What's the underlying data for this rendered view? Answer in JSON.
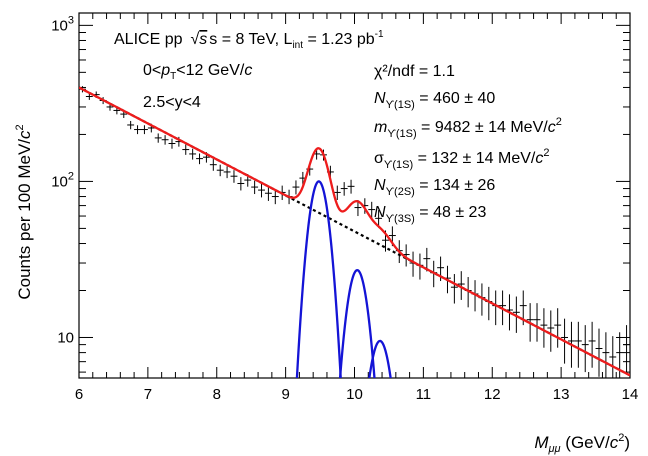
{
  "chart_data": {
    "type": "scatter",
    "xlabel": {
      "main": "M",
      "sub": "μμ",
      "unit_pre": " (GeV/",
      "unit_c": "c",
      "unit_sup": "2",
      "unit_post": ")"
    },
    "ylabel": {
      "pre": "Counts per 100 MeV/",
      "c": "c",
      "sup": "2"
    },
    "x_ticks": [
      "6",
      "7",
      "8",
      "9",
      "10",
      "11",
      "12",
      "13",
      "14"
    ],
    "y_ticks": [
      {
        "base": "10",
        "sup": ""
      },
      {
        "base": "10",
        "sup": "2"
      },
      {
        "base": "10",
        "sup": "3"
      }
    ],
    "xlim": [
      6,
      14
    ],
    "ylim": [
      5.5,
      1200
    ],
    "log_y": true,
    "grid": false,
    "annotations": {
      "experiment": "ALICE pp",
      "energy": "s = 8 TeV, L",
      "lumi_sub": "int",
      "lumi_val": " = 1.23 pb",
      "lumi_sup": "-1",
      "pt_pre": "0<",
      "pt_p": "p",
      "pt_sub": "T",
      "pt_mid": "<12 GeV/",
      "pt_c": "c",
      "rapidity": "2.5<y<4",
      "chi2": "χ²/ndf = 1.1",
      "n1s_sub": "ϒ(1S)",
      "n1s_val": " = 460 ± 40",
      "m1s_sub": "ϒ(1S)",
      "m1s_val": " = 9482 ± 14 MeV/",
      "s1s_sub": "ϒ(1S)",
      "s1s_val": " = 132 ± 14 MeV/",
      "n2s_sub": "ϒ(2S)",
      "n2s_val": " = 134 ± 26",
      "n3s_sub": "ϒ(3S)",
      "n3s_val": " = 48 ± 23"
    },
    "series": [
      {
        "kind": "data",
        "x": [
          6.05,
          6.15,
          6.25,
          6.35,
          6.45,
          6.55,
          6.65,
          6.75,
          6.85,
          6.95,
          7.05,
          7.15,
          7.25,
          7.35,
          7.45,
          7.55,
          7.65,
          7.75,
          7.85,
          7.95,
          8.05,
          8.15,
          8.25,
          8.35,
          8.45,
          8.55,
          8.65,
          8.75,
          8.85,
          8.95,
          9.05,
          9.15,
          9.25,
          9.35,
          9.45,
          9.55,
          9.65,
          9.75,
          9.85,
          9.95,
          10.05,
          10.15,
          10.25,
          10.35,
          10.45,
          10.55,
          10.65,
          10.75,
          10.85,
          10.95,
          11.05,
          11.15,
          11.25,
          11.35,
          11.45,
          11.55,
          11.65,
          11.75,
          11.85,
          11.95,
          12.05,
          12.15,
          12.25,
          12.35,
          12.45,
          12.55,
          12.65,
          12.75,
          12.85,
          12.95,
          13.05,
          13.15,
          13.25,
          13.35,
          13.45,
          13.55,
          13.65,
          13.75,
          13.85,
          13.95
        ],
        "y": [
          390,
          350,
          360,
          330,
          300,
          285,
          270,
          230,
          215,
          215,
          220,
          190,
          185,
          175,
          180,
          160,
          150,
          140,
          143,
          128,
          118,
          115,
          108,
          97,
          102,
          92,
          88,
          84,
          80,
          85,
          80,
          92,
          105,
          120,
          150,
          148,
          115,
          85,
          90,
          93,
          68,
          70,
          66,
          58,
          42,
          45,
          36,
          34,
          30,
          29,
          32,
          26,
          28,
          24,
          21,
          22,
          20,
          19,
          18,
          17,
          16,
          16,
          15,
          14.5,
          16,
          13,
          13,
          12,
          11.5,
          12,
          10,
          9.5,
          9.5,
          9,
          9.5,
          8.5,
          8,
          7.5,
          8,
          9
        ],
        "y_err": [
          18,
          17,
          17,
          17,
          16,
          16,
          15,
          14,
          14,
          14,
          14,
          13,
          13,
          13,
          13,
          12,
          12,
          11,
          11,
          11,
          10,
          10,
          10,
          9.5,
          9.5,
          9,
          9,
          9,
          8.5,
          9,
          8.5,
          9.5,
          10,
          11,
          12,
          12,
          11,
          9,
          9,
          9.5,
          8,
          8,
          8,
          7.5,
          6.5,
          6.5,
          6,
          5.5,
          5.5,
          5.5,
          5.5,
          5,
          5,
          4.8,
          4.5,
          4.6,
          4.4,
          4.3,
          4.2,
          4.1,
          4,
          4,
          3.9,
          3.8,
          4,
          3.6,
          3.6,
          3.4,
          3.4,
          3.4,
          3.2,
          3.1,
          3.1,
          3,
          3.1,
          2.9,
          2.8,
          2.7,
          2.8,
          3
        ]
      },
      {
        "kind": "fit-total",
        "color": "#ee1c1c"
      },
      {
        "kind": "background",
        "color": "#000000"
      },
      {
        "kind": "signal",
        "state": "ϒ(1S)",
        "color": "#1414d6",
        "mean": 9.482,
        "sigma": 0.132,
        "peak": 100
      },
      {
        "kind": "signal",
        "state": "ϒ(2S)",
        "color": "#1414d6",
        "mean": 10.04,
        "sigma": 0.14,
        "peak": 27
      },
      {
        "kind": "signal",
        "state": "ϒ(3S)",
        "color": "#1414d6",
        "mean": 10.37,
        "sigma": 0.148,
        "peak": 9.5
      }
    ],
    "background_model": {
      "a0": 400,
      "slope": 0.531
    }
  }
}
